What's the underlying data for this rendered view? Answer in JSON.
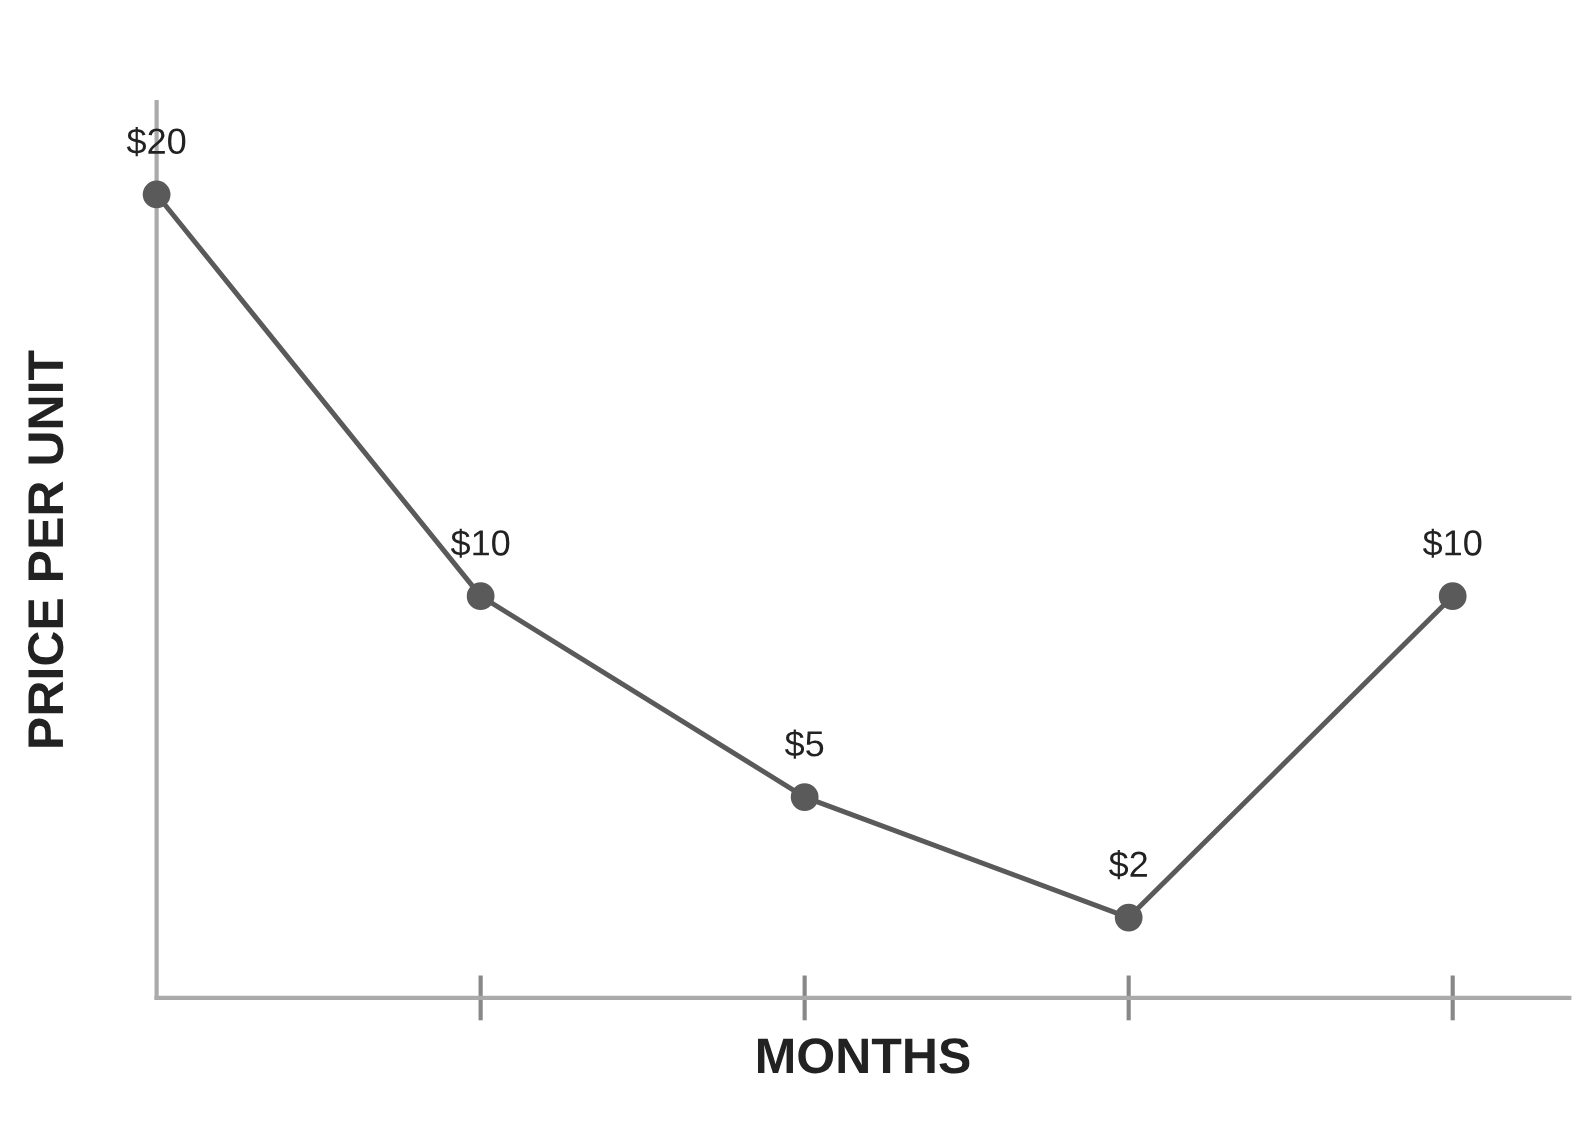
{
  "chart_data": {
    "type": "line",
    "xlabel": "MONTHS",
    "ylabel": "PRICE PER UNIT",
    "categories": [
      null,
      null,
      null,
      null,
      null
    ],
    "series": [
      {
        "color": "#5a5a5a",
        "values": [
          20,
          10,
          5,
          2,
          10
        ],
        "value_labels": [
          "$20",
          "$10",
          "$5",
          "$2",
          "$10"
        ]
      }
    ],
    "ylim": [
      0,
      22.3
    ],
    "tick_labels": false,
    "marker": "circle",
    "line_style": "solid",
    "legend": false
  }
}
